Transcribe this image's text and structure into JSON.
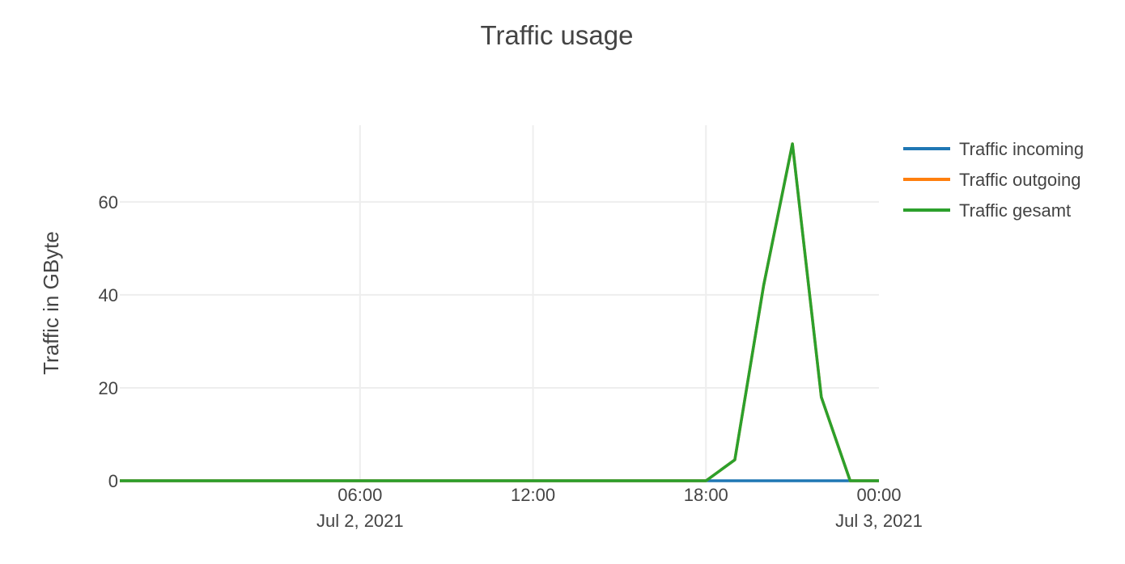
{
  "chart_data": {
    "type": "line",
    "title": "Traffic usage",
    "xlabel": "",
    "ylabel": "Traffic in GByte",
    "x_range": [
      "2021-07-01T21:40",
      "2021-07-03T00:00"
    ],
    "ylim": [
      0,
      76.5
    ],
    "y_ticks": [
      0,
      20,
      40,
      60
    ],
    "x_ticks": [
      {
        "label": "06:00",
        "sublabel": "Jul 2, 2021",
        "x": "2021-07-02T06:00"
      },
      {
        "label": "12:00",
        "sublabel": "",
        "x": "2021-07-02T12:00"
      },
      {
        "label": "18:00",
        "sublabel": "",
        "x": "2021-07-02T18:00"
      },
      {
        "label": "00:00",
        "sublabel": "Jul 3, 2021",
        "x": "2021-07-03T00:00"
      }
    ],
    "grid": true,
    "legend_position": "top-right",
    "series": [
      {
        "name": "Traffic incoming",
        "color": "#1f77b4",
        "x": [
          "2021-07-01T21:40",
          "2021-07-02T18:00",
          "2021-07-02T19:00",
          "2021-07-02T20:00",
          "2021-07-02T21:00",
          "2021-07-02T22:00",
          "2021-07-02T23:00",
          "2021-07-03T00:00"
        ],
        "values": [
          0,
          0,
          0,
          0,
          0,
          0,
          0,
          0
        ]
      },
      {
        "name": "Traffic outgoing",
        "color": "#ff7f0e",
        "x": [
          "2021-07-01T21:40",
          "2021-07-02T18:00",
          "2021-07-02T19:00",
          "2021-07-02T20:00",
          "2021-07-02T21:00",
          "2021-07-02T22:00",
          "2021-07-02T23:00",
          "2021-07-03T00:00"
        ],
        "values": [
          0,
          0,
          4.5,
          42,
          72.5,
          18,
          0,
          0
        ]
      },
      {
        "name": "Traffic gesamt",
        "color": "#2ca02c",
        "x": [
          "2021-07-01T21:40",
          "2021-07-02T18:00",
          "2021-07-02T19:00",
          "2021-07-02T20:00",
          "2021-07-02T21:00",
          "2021-07-02T22:00",
          "2021-07-02T23:00",
          "2021-07-03T00:00"
        ],
        "values": [
          0,
          0,
          4.5,
          42,
          72.5,
          18,
          0,
          0
        ]
      }
    ]
  }
}
